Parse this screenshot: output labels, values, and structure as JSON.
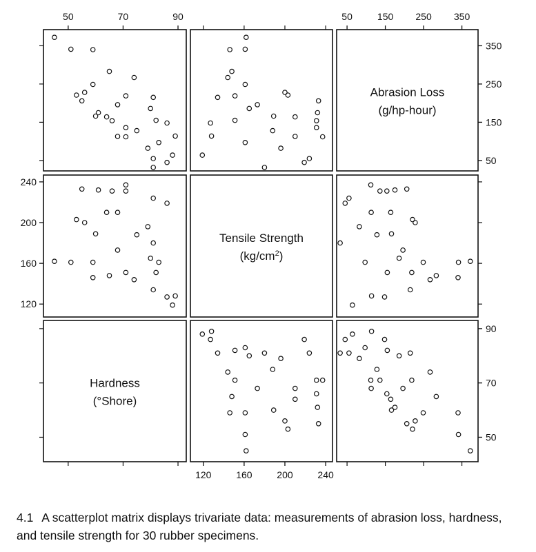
{
  "caption": {
    "number": "4.1",
    "text": "A scatterplot matrix displays trivariate data:  measurements of abrasion loss, hardness, and tensile strength for 30 rubber specimens."
  },
  "chart_data": {
    "type": "scatter",
    "variables": [
      {
        "key": "abrasion",
        "label": "Abrasion Loss",
        "units": "(g/hp-hour)",
        "range": [
          30,
          385
        ],
        "ticks": [
          50,
          150,
          250,
          350
        ]
      },
      {
        "key": "tensile",
        "label": "Tensile Strength",
        "units": "(kg/cm",
        "units_sup": "2",
        "units_close": ")",
        "range": [
          110,
          244
        ],
        "ticks": [
          120,
          160,
          200,
          240
        ]
      },
      {
        "key": "hardness",
        "label": "Hardness",
        "units": "(°Shore)",
        "range": [
          42,
          92
        ],
        "ticks": [
          50,
          70,
          90
        ]
      }
    ],
    "tick_axes": {
      "top": [
        {
          "column": 0,
          "variable": "hardness",
          "ticks": [
            50,
            70,
            90
          ]
        },
        {
          "column": 2,
          "variable": "tensile",
          "ticks": [
            50,
            150,
            250,
            350
          ]
        }
      ],
      "bottom": [
        {
          "column": 1,
          "variable": "tensile",
          "ticks": [
            120,
            160,
            200,
            240
          ]
        }
      ],
      "left": [
        {
          "row": 1,
          "variable": "tensile",
          "ticks": [
            120,
            160,
            200,
            240
          ]
        }
      ],
      "right": [
        {
          "row": 0,
          "variable": "abrasion",
          "ticks": [
            50,
            150,
            250,
            350
          ]
        },
        {
          "row": 2,
          "variable": "hardness",
          "ticks": [
            50,
            70,
            90
          ]
        }
      ]
    },
    "specimens": [
      {
        "hardness": 45,
        "tensile": 162,
        "abrasion": 372
      },
      {
        "hardness": 55,
        "tensile": 233,
        "abrasion": 206
      },
      {
        "hardness": 61,
        "tensile": 232,
        "abrasion": 175
      },
      {
        "hardness": 66,
        "tensile": 231,
        "abrasion": 154
      },
      {
        "hardness": 71,
        "tensile": 231,
        "abrasion": 136
      },
      {
        "hardness": 71,
        "tensile": 237,
        "abrasion": 112
      },
      {
        "hardness": 81,
        "tensile": 224,
        "abrasion": 55
      },
      {
        "hardness": 86,
        "tensile": 219,
        "abrasion": 45
      },
      {
        "hardness": 53,
        "tensile": 203,
        "abrasion": 221
      },
      {
        "hardness": 60,
        "tensile": 189,
        "abrasion": 166
      },
      {
        "hardness": 64,
        "tensile": 210,
        "abrasion": 164
      },
      {
        "hardness": 68,
        "tensile": 210,
        "abrasion": 113
      },
      {
        "hardness": 79,
        "tensile": 196,
        "abrasion": 82
      },
      {
        "hardness": 81,
        "tensile": 180,
        "abrasion": 32
      },
      {
        "hardness": 56,
        "tensile": 200,
        "abrasion": 228
      },
      {
        "hardness": 68,
        "tensile": 173,
        "abrasion": 196
      },
      {
        "hardness": 75,
        "tensile": 188,
        "abrasion": 128
      },
      {
        "hardness": 83,
        "tensile": 161,
        "abrasion": 97
      },
      {
        "hardness": 88,
        "tensile": 119,
        "abrasion": 64
      },
      {
        "hardness": 59,
        "tensile": 161,
        "abrasion": 249
      },
      {
        "hardness": 71,
        "tensile": 151,
        "abrasion": 219
      },
      {
        "hardness": 80,
        "tensile": 165,
        "abrasion": 186
      },
      {
        "hardness": 82,
        "tensile": 151,
        "abrasion": 155
      },
      {
        "hardness": 89,
        "tensile": 128,
        "abrasion": 114
      },
      {
        "hardness": 51,
        "tensile": 161,
        "abrasion": 341
      },
      {
        "hardness": 59,
        "tensile": 146,
        "abrasion": 340
      },
      {
        "hardness": 65,
        "tensile": 148,
        "abrasion": 283
      },
      {
        "hardness": 74,
        "tensile": 144,
        "abrasion": 267
      },
      {
        "hardness": 81,
        "tensile": 134,
        "abrasion": 215
      },
      {
        "hardness": 86,
        "tensile": 127,
        "abrasion": 148
      }
    ],
    "grid": false,
    "legend": "none"
  }
}
